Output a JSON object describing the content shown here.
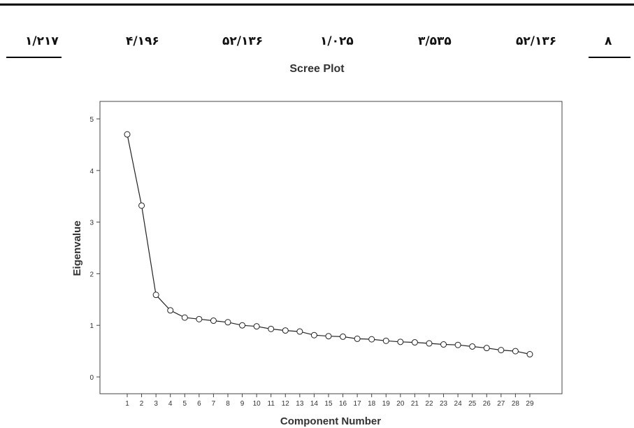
{
  "table_row": {
    "cells": [
      "۱/۲۱۷",
      "۴/۱۹۶",
      "۵۲/۱۳۶",
      "۱/۰۲۵",
      "۳/۵۳۵",
      "۵۲/۱۳۶",
      "۸"
    ]
  },
  "chart_data": {
    "type": "line",
    "title": "Scree Plot",
    "xlabel": "Component Number",
    "ylabel": "Eigenvalue",
    "x": [
      1,
      2,
      3,
      4,
      5,
      6,
      7,
      8,
      9,
      10,
      11,
      12,
      13,
      14,
      15,
      16,
      17,
      18,
      19,
      20,
      21,
      22,
      23,
      24,
      25,
      26,
      27,
      28,
      29
    ],
    "series": [
      {
        "values": [
          4.7,
          3.32,
          1.59,
          1.29,
          1.15,
          1.12,
          1.09,
          1.06,
          1.0,
          0.98,
          0.93,
          0.9,
          0.88,
          0.81,
          0.79,
          0.78,
          0.74,
          0.73,
          0.7,
          0.68,
          0.67,
          0.65,
          0.63,
          0.62,
          0.59,
          0.56,
          0.52,
          0.5,
          0.44
        ]
      }
    ],
    "xticks": [
      "1",
      "2",
      "3",
      "4",
      "5",
      "6",
      "7",
      "8",
      "9",
      "10",
      "11",
      "12",
      "13",
      "14",
      "15",
      "16",
      "17",
      "18",
      "19",
      "20",
      "21",
      "22",
      "23",
      "24",
      "25",
      "26",
      "27",
      "28",
      "29"
    ],
    "yticks": [
      "0",
      "1",
      "2",
      "3",
      "4",
      "5"
    ],
    "ylim": [
      0,
      5
    ],
    "grid": false,
    "marker": "open-circle",
    "line_color": "#222222"
  }
}
